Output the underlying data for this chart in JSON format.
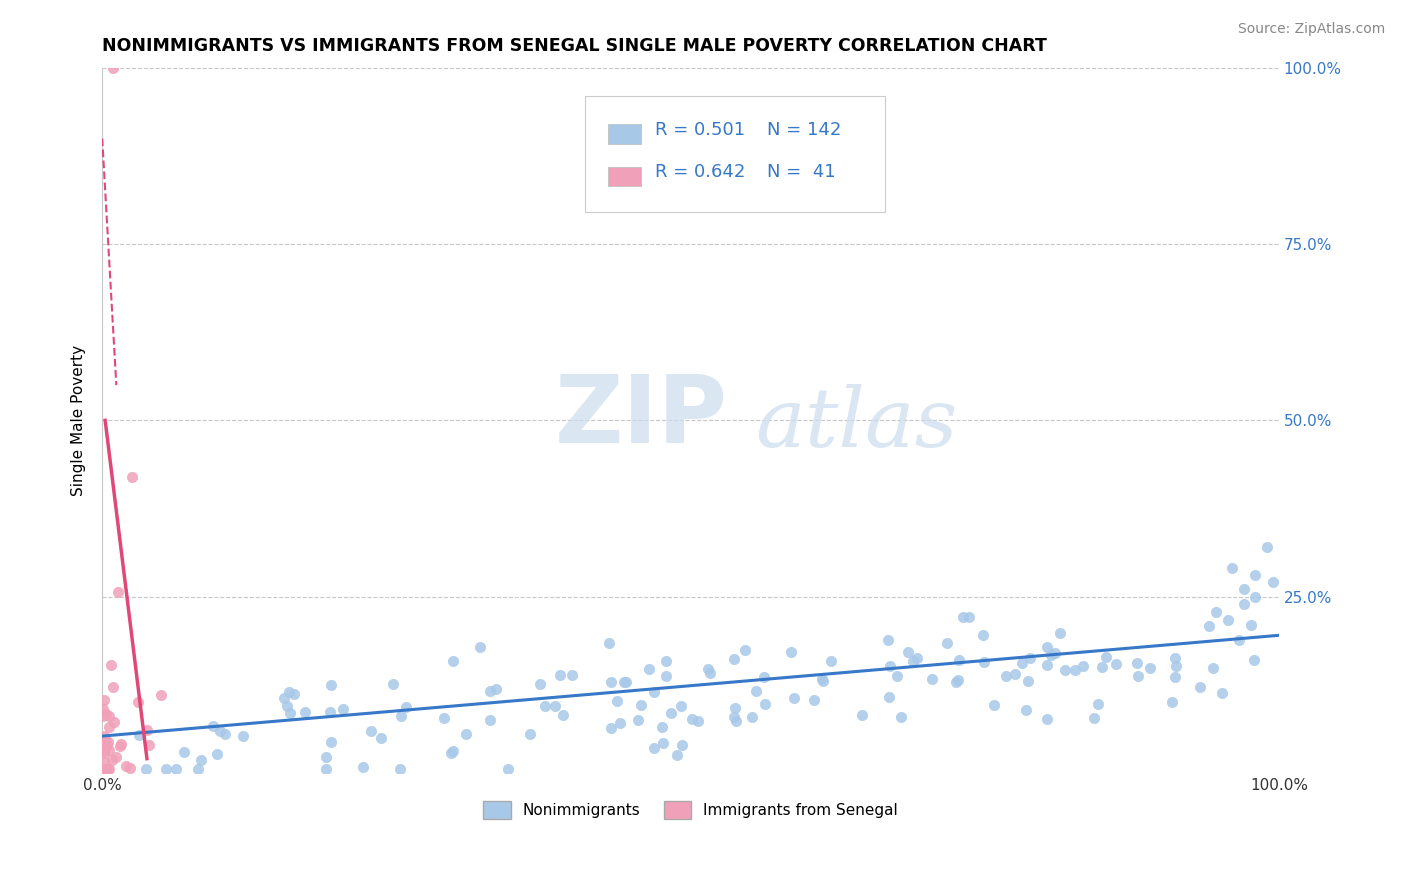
{
  "title": "NONIMMIGRANTS VS IMMIGRANTS FROM SENEGAL SINGLE MALE POVERTY CORRELATION CHART",
  "source": "Source: ZipAtlas.com",
  "ylabel": "Single Male Poverty",
  "xlim": [
    0,
    1.0
  ],
  "ylim": [
    0,
    1.0
  ],
  "background_color": "#ffffff",
  "grid_color": "#c8c8c8",
  "nonimmigrant_color": "#a8c8e8",
  "immigrant_color": "#f0a0b8",
  "nonimmigrant_line_color": "#3878c8",
  "immigrant_line_color": "#e04878",
  "nonimmigrant_label": "Nonimmigrants",
  "immigrant_label": "Immigrants from Senegal",
  "watermark_zip": "ZIP",
  "watermark_atlas": "atlas",
  "R1": 0.501,
  "N1": 142,
  "R2": 0.642,
  "N2": 41,
  "legend_color": "#3878c8"
}
